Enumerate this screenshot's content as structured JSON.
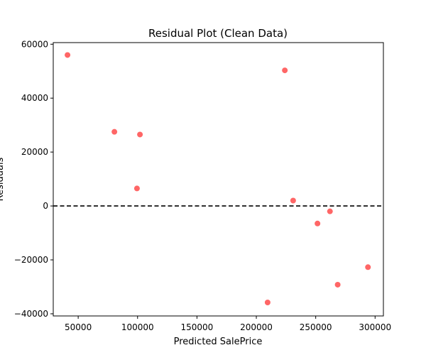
{
  "chart_data": {
    "type": "scatter",
    "title": "Residual Plot (Clean Data)",
    "xlabel": "Predicted SalePrice",
    "ylabel": "Residuals",
    "xlim": [
      29000,
      307000
    ],
    "ylim": [
      -40800,
      60600
    ],
    "x_ticks": [
      50000,
      100000,
      150000,
      200000,
      250000,
      300000
    ],
    "y_ticks": [
      -40000,
      -20000,
      0,
      20000,
      40000,
      60000
    ],
    "reference_line": {
      "y": 0,
      "style": "dashed",
      "color": "#000000"
    },
    "marker_color": "#ff6666",
    "grid": false,
    "series": [
      {
        "points": [
          {
            "x": 41000,
            "y": 56000
          },
          {
            "x": 80500,
            "y": 27500
          },
          {
            "x": 99500,
            "y": 6500
          },
          {
            "x": 102000,
            "y": 26500
          },
          {
            "x": 209500,
            "y": -35800
          },
          {
            "x": 224000,
            "y": 50300
          },
          {
            "x": 231000,
            "y": 2000
          },
          {
            "x": 251500,
            "y": -6500
          },
          {
            "x": 262000,
            "y": -2000
          },
          {
            "x": 268500,
            "y": -29200
          },
          {
            "x": 294000,
            "y": -22700
          }
        ]
      }
    ]
  }
}
